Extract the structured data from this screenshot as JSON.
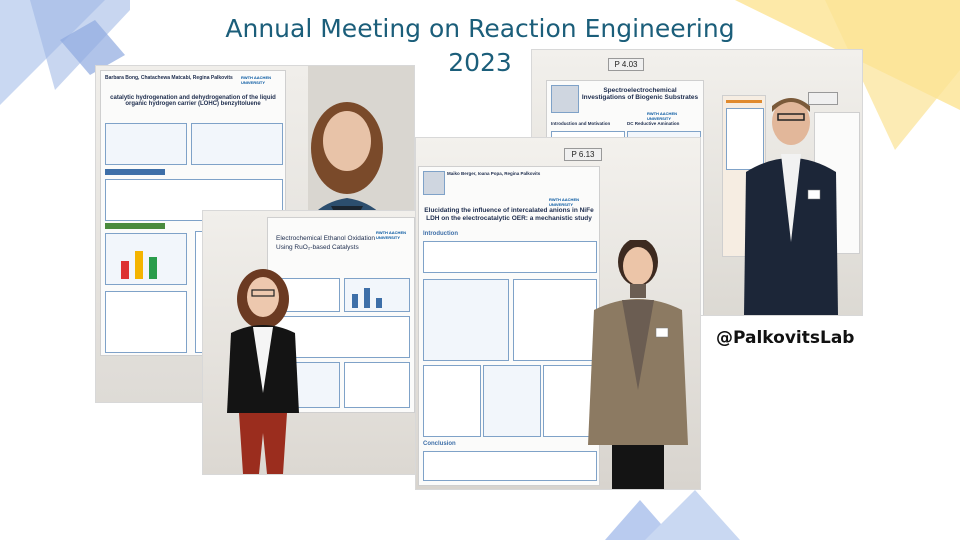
{
  "slide": {
    "title_line1": "Annual Meeting on Reaction Engineering",
    "title_line2": "2023",
    "handle": "@PalkovitsLab",
    "colors": {
      "title": "#1b5e7a",
      "deco_blue": "#9bb5e3",
      "deco_yellow": "#fde9a8"
    }
  },
  "photos": {
    "top_left": {
      "poster_title": "catalytic hydrogenation and dehydrogenation of the liquid organic hydrogen carrier (LOHC) benzyltoluene",
      "poster_authors": "Barbara Bong, Chatachewa Matcabi, Regina Palkovits",
      "logo": "RWTH AACHEN UNIVERSITY"
    },
    "top_right": {
      "poster_tag": "P 4.03",
      "poster_title": "Spectroelectrochemical Investigations of Biogenic Substrates",
      "section_intro": "Introduction and Motivation",
      "section_dc": "DC Reductive Amination",
      "logo": "RWTH AACHEN UNIVERSITY"
    },
    "bottom_left": {
      "poster_title": "Electrochemical Ethanol Oxidation Using RuO₂-based Catalysts",
      "logo": "RWTH AACHEN UNIVERSITY"
    },
    "center": {
      "poster_tag": "P 6.13",
      "poster_title": "Elucidating the influence of intercalated anions in NiFe LDH on the electrocatalytic OER: a mechanistic study",
      "poster_authors": "Maiko Berger, Ioana Popa, Regina Palkovits",
      "section_intro": "Introduction",
      "section_conclusion": "Conclusion",
      "logo": "RWTH AACHEN UNIVERSITY"
    }
  }
}
